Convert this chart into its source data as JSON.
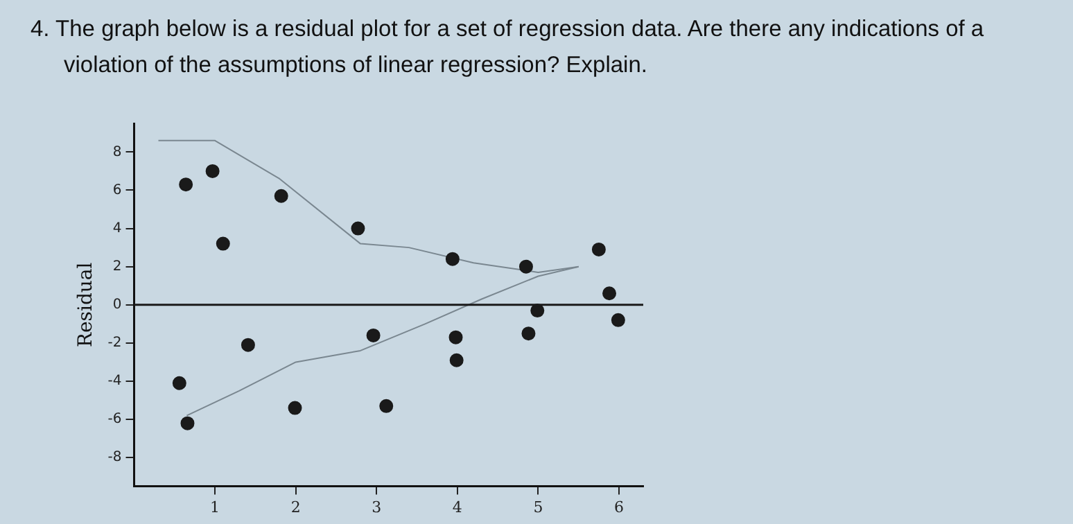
{
  "chart_data": {
    "type": "scatter",
    "title": "4.  The graph below is a residual plot for a set of regression data. Are there any indications of a violation of the assumptions of linear regression? Explain.",
    "ylabel": "Residual",
    "series": [
      {
        "marker": "circle",
        "color": "#1a1a1a",
        "x": [
          0.64,
          0.97,
          1.1,
          1.82,
          2.77,
          3.94,
          4.85,
          5.75,
          5.88,
          4.99,
          5.99,
          0.56,
          0.66,
          1.41,
          1.99,
          2.96,
          3.12,
          3.98,
          3.99,
          4.88
        ],
        "values": [
          6.3,
          7.0,
          3.2,
          5.7,
          4.0,
          2.4,
          2.0,
          2.9,
          0.6,
          -0.3,
          -0.8,
          -4.1,
          -6.2,
          -2.1,
          -5.4,
          -1.6,
          -5.3,
          -1.7,
          -2.9,
          -1.5
        ]
      },
      {
        "type": "line",
        "marker": "none",
        "color": "#7a8790",
        "x": [
          0.3,
          1.0,
          1.8,
          2.8,
          3.4,
          4.2,
          5.0,
          5.5
        ],
        "values": [
          8.6,
          8.6,
          6.6,
          3.2,
          3.0,
          2.2,
          1.7,
          2.0
        ]
      },
      {
        "type": "line",
        "marker": "none",
        "color": "#7a8790",
        "x": [
          0.65,
          1.3,
          2.0,
          2.8,
          3.6,
          4.3,
          5.0,
          5.5
        ],
        "values": [
          -5.8,
          -4.5,
          -3.0,
          -2.4,
          -1.0,
          0.3,
          1.5,
          2.0
        ]
      }
    ],
    "xlim": [
      0,
      6.3
    ],
    "ylim": [
      -9.5,
      9.5
    ],
    "xticks": [
      1,
      2,
      3,
      4,
      5,
      6
    ],
    "yticks": [
      -8,
      -6,
      -4,
      -2,
      0,
      2,
      4,
      6,
      8
    ],
    "ref_lines": [
      {
        "axis": "y",
        "value": 0,
        "color": "#1a1a1a"
      }
    ],
    "grid": false,
    "legend": false
  }
}
